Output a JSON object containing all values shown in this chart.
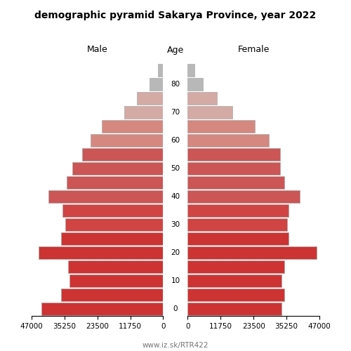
{
  "title": "demographic pyramid Sakarya Province, year 2022",
  "age_labels": [
    "0",
    "",
    "10",
    "",
    "20",
    "",
    "30",
    "",
    "40",
    "",
    "50",
    "",
    "60",
    "",
    "70",
    "",
    "80",
    ""
  ],
  "male_values": [
    43500,
    36500,
    33500,
    34000,
    44500,
    36500,
    35000,
    36000,
    41000,
    34500,
    32500,
    29000,
    26000,
    22000,
    14000,
    9500,
    5000,
    2000
  ],
  "female_values": [
    33500,
    34500,
    33500,
    34500,
    46000,
    36000,
    35500,
    36000,
    40000,
    34500,
    33000,
    33000,
    29000,
    24000,
    16000,
    10500,
    5500,
    2500
  ],
  "xlim": 47000,
  "xticks": [
    0,
    11750,
    23500,
    35250,
    47000
  ],
  "male_colors": [
    "#cd3333",
    "#cd3333",
    "#cd3333",
    "#cd3333",
    "#cc3333",
    "#cc3333",
    "#d14444",
    "#d14444",
    "#cc5555",
    "#cc5555",
    "#cc5555",
    "#cc5555",
    "#d48880",
    "#d48880",
    "#d4aaa5",
    "#d4aaa5",
    "#b8b8b8",
    "#b8b8b8"
  ],
  "female_colors": [
    "#cd3333",
    "#cd3333",
    "#cd3333",
    "#cd3333",
    "#cc3333",
    "#cc3333",
    "#d14444",
    "#d14444",
    "#cc5555",
    "#cc5555",
    "#cc5555",
    "#cc5555",
    "#d48880",
    "#d48880",
    "#d4aaa5",
    "#d4aaa5",
    "#b8b8b8",
    "#b8b8b8"
  ],
  "xlabel_male": "Male",
  "xlabel_female": "Female",
  "xlabel_age": "Age",
  "footer": "www.iz.sk/RTR422",
  "bar_height": 0.88,
  "edgecolor": "#aaaaaa",
  "background_color": "#ffffff",
  "figsize": [
    5.0,
    5.0
  ],
  "dpi": 100
}
